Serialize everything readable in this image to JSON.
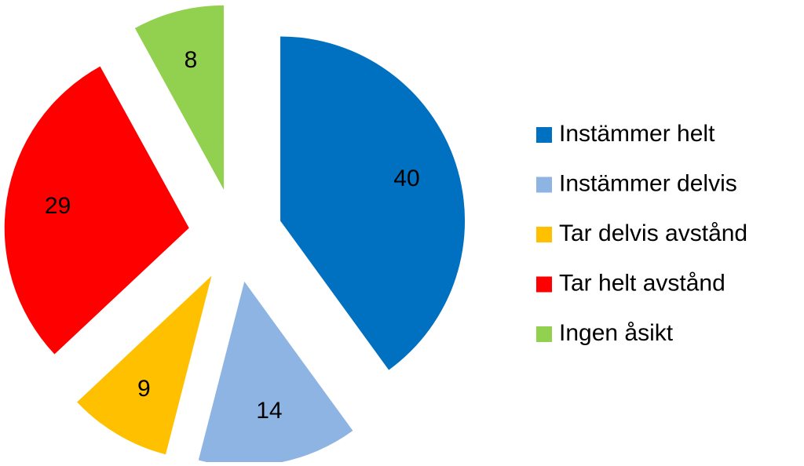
{
  "chart_data": {
    "type": "pie",
    "exploded": true,
    "legend": "right",
    "categories": [
      "Instämmer helt",
      "Instämmer delvis",
      "Tar delvis avstånd",
      "Tar helt avstånd",
      "Ingen åsikt"
    ],
    "values": [
      40,
      14,
      9,
      29,
      8
    ],
    "colors": [
      "#0070c0",
      "#8eb4e3",
      "#ffc000",
      "#ff0000",
      "#92d050"
    ]
  }
}
